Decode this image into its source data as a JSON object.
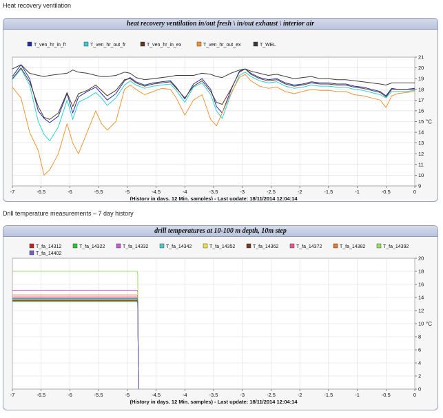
{
  "sections": {
    "ventilation_title": "Heat recovery ventilation",
    "drill_title": "Drill temperature measurements – 7 day history"
  },
  "chart_data": [
    {
      "type": "line",
      "title": "heat recovery ventilation in/out fresh \\ in/out exhaust \\ interior air",
      "xlabel": "(History in days. 12 Min. samples) - Last update: 18/11/2014 12:04:14",
      "ylabel": "°C",
      "xlim": [
        -7,
        0
      ],
      "ylim": [
        9,
        21
      ],
      "xticks": [
        "-7",
        "-6.5",
        "-6",
        "-5.5",
        "-5",
        "-4.5",
        "-4",
        "-3.5",
        "-3",
        "-2.5",
        "-2",
        "-1.5",
        "-1",
        "-0.5",
        "0"
      ],
      "yticks": [
        "9",
        "10",
        "11",
        "12",
        "13",
        "14",
        "15",
        "16",
        "17",
        "18",
        "19",
        "20",
        "21"
      ],
      "grid": true,
      "legend": "top",
      "x": [
        -7,
        -6.85,
        -6.7,
        -6.55,
        -6.45,
        -6.35,
        -6.2,
        -6.05,
        -5.95,
        -5.85,
        -5.7,
        -5.55,
        -5.45,
        -5.35,
        -5.2,
        -5.05,
        -4.95,
        -4.85,
        -4.7,
        -4.55,
        -4.4,
        -4.25,
        -4.15,
        -4.0,
        -3.85,
        -3.7,
        -3.55,
        -3.45,
        -3.35,
        -3.2,
        -3.05,
        -2.95,
        -2.85,
        -2.7,
        -2.55,
        -2.4,
        -2.25,
        -2.1,
        -1.95,
        -1.8,
        -1.65,
        -1.5,
        -1.35,
        -1.2,
        -1.05,
        -0.9,
        -0.75,
        -0.6,
        -0.5,
        -0.4,
        -0.3,
        -0.15,
        0
      ],
      "series": [
        {
          "name": "T_ven_hr_in_fr",
          "color": "#1f2fa8",
          "values": [
            19.2,
            20.3,
            19.0,
            16.0,
            15.3,
            14.9,
            15.5,
            17.6,
            15.8,
            17.3,
            17.8,
            18.2,
            17.6,
            17.0,
            17.6,
            18.8,
            19.1,
            18.7,
            18.4,
            18.6,
            18.7,
            18.8,
            18.2,
            17.1,
            18.5,
            19.0,
            18.0,
            16.4,
            15.8,
            17.9,
            19.7,
            19.9,
            19.5,
            19.1,
            18.9,
            19.0,
            18.6,
            18.4,
            18.5,
            18.7,
            18.6,
            18.6,
            18.5,
            18.5,
            18.3,
            18.2,
            18.0,
            17.8,
            17.4,
            18.1,
            18.0,
            18.0,
            18.1
          ]
        },
        {
          "name": "T_ven_hr_out_fr",
          "color": "#2bd0d8",
          "values": [
            18.9,
            19.9,
            18.4,
            15.0,
            13.8,
            13.2,
            14.5,
            17.0,
            15.2,
            16.8,
            17.2,
            17.7,
            17.2,
            16.5,
            17.2,
            18.4,
            18.8,
            18.4,
            18.1,
            18.3,
            18.4,
            18.5,
            17.9,
            16.8,
            18.2,
            18.6,
            17.5,
            16.0,
            15.3,
            17.5,
            19.3,
            19.6,
            19.2,
            18.8,
            18.6,
            18.7,
            18.3,
            18.1,
            18.2,
            18.4,
            18.3,
            18.3,
            18.2,
            18.2,
            18.0,
            17.9,
            17.7,
            17.5,
            17.2,
            17.8,
            17.8,
            17.8,
            17.9
          ]
        },
        {
          "name": "T_ven_hr_in_ex",
          "color": "#5a3a24",
          "values": [
            19.0,
            20.0,
            18.7,
            16.4,
            15.4,
            15.2,
            15.8,
            17.7,
            16.4,
            17.6,
            17.9,
            18.4,
            17.9,
            17.4,
            17.9,
            18.9,
            19.0,
            18.6,
            18.3,
            18.5,
            18.6,
            18.7,
            18.1,
            17.2,
            18.3,
            18.8,
            17.8,
            16.8,
            16.6,
            18.0,
            19.6,
            19.9,
            19.4,
            19.0,
            18.8,
            18.9,
            18.5,
            18.3,
            18.4,
            18.6,
            18.5,
            18.5,
            18.4,
            18.4,
            18.2,
            18.1,
            17.9,
            17.7,
            17.3,
            18.0,
            18.0,
            18.0,
            18.0
          ]
        },
        {
          "name": "T_ven_hr_out_ex",
          "color": "#f39433",
          "values": [
            18.2,
            17.2,
            14.0,
            12.3,
            10.0,
            10.5,
            12.0,
            14.8,
            13.0,
            12.0,
            14.0,
            16.0,
            14.8,
            14.2,
            15.0,
            18.0,
            18.4,
            18.0,
            17.5,
            17.8,
            18.1,
            18.0,
            17.2,
            15.6,
            17.0,
            17.5,
            15.2,
            14.6,
            15.8,
            17.6,
            19.1,
            19.4,
            18.8,
            18.3,
            18.1,
            18.2,
            17.8,
            17.6,
            17.8,
            18.0,
            17.9,
            17.9,
            17.8,
            17.8,
            17.5,
            17.4,
            17.2,
            17.0,
            16.3,
            17.4,
            17.6,
            17.7,
            17.8
          ]
        },
        {
          "name": "T_WEL",
          "color": "#3b3b3b",
          "values": [
            19.9,
            20.3,
            19.5,
            19.3,
            19.2,
            19.3,
            19.4,
            19.5,
            19.8,
            19.6,
            19.5,
            19.3,
            19.2,
            19.2,
            19.3,
            19.6,
            19.5,
            19.1,
            18.9,
            19.0,
            19.1,
            19.2,
            19.3,
            19.3,
            19.3,
            19.5,
            19.4,
            19.2,
            19.1,
            19.5,
            19.8,
            19.9,
            19.7,
            19.5,
            19.3,
            19.4,
            19.2,
            19.0,
            19.1,
            19.2,
            19.0,
            19.0,
            18.9,
            18.9,
            18.8,
            18.7,
            18.6,
            18.5,
            18.4,
            18.6,
            18.6,
            18.6,
            18.6
          ]
        }
      ]
    },
    {
      "type": "line",
      "title": "drill temperatures at 10-100 m depth, 10m step",
      "xlabel": "(History in days. 12 Min. samples) - Last update: 18/11/2014 12:04:14",
      "ylabel": "°C",
      "xlim": [
        -7,
        0
      ],
      "ylim": [
        0,
        20
      ],
      "xticks": [
        "-7",
        "-6.5",
        "-6",
        "-5.5",
        "-5",
        "-4.5",
        "-4",
        "-3.5",
        "-3",
        "-2.5",
        "-2",
        "-1.5",
        "-1",
        "-0.5",
        "0"
      ],
      "yticks": [
        "0",
        "2",
        "4",
        "6",
        "8",
        "10",
        "12",
        "14",
        "16",
        "18",
        "20"
      ],
      "grid": true,
      "legend": "top",
      "x": [
        -7,
        -4.83,
        -4.82,
        -4.81,
        -4.8
      ],
      "series": [
        {
          "name": "T_fa_14312",
          "color": "#c4281c",
          "values": [
            13.6,
            13.6,
            13.3,
            5.0,
            0
          ]
        },
        {
          "name": "T_fa_14322",
          "color": "#2cc63c",
          "values": [
            13.4,
            13.4,
            13.1,
            5.0,
            0
          ]
        },
        {
          "name": "T_fa_14332",
          "color": "#c85ad0",
          "values": [
            15.1,
            15.1,
            14.8,
            5.0,
            0
          ]
        },
        {
          "name": "T_fa_14342",
          "color": "#50c8c8",
          "values": [
            13.9,
            13.9,
            13.6,
            5.0,
            0
          ]
        },
        {
          "name": "T_fa_14352",
          "color": "#e6e04a",
          "values": [
            13.7,
            13.7,
            13.4,
            5.0,
            0
          ]
        },
        {
          "name": "T_fa_14362",
          "color": "#6b3d22",
          "values": [
            13.5,
            13.5,
            13.2,
            5.0,
            0
          ]
        },
        {
          "name": "T_fa_14372",
          "color": "#e8578e",
          "values": [
            14.1,
            14.1,
            13.8,
            5.0,
            0
          ]
        },
        {
          "name": "T_fa_14382",
          "color": "#e07c32",
          "values": [
            14.4,
            14.4,
            14.1,
            5.0,
            0
          ]
        },
        {
          "name": "T_fa_14392",
          "color": "#96e064",
          "values": [
            18.0,
            18.0,
            17.6,
            5.0,
            0
          ]
        },
        {
          "name": "T_fa_14402",
          "color": "#7060c4",
          "values": [
            13.8,
            13.8,
            13.5,
            5.0,
            0
          ]
        }
      ]
    }
  ]
}
